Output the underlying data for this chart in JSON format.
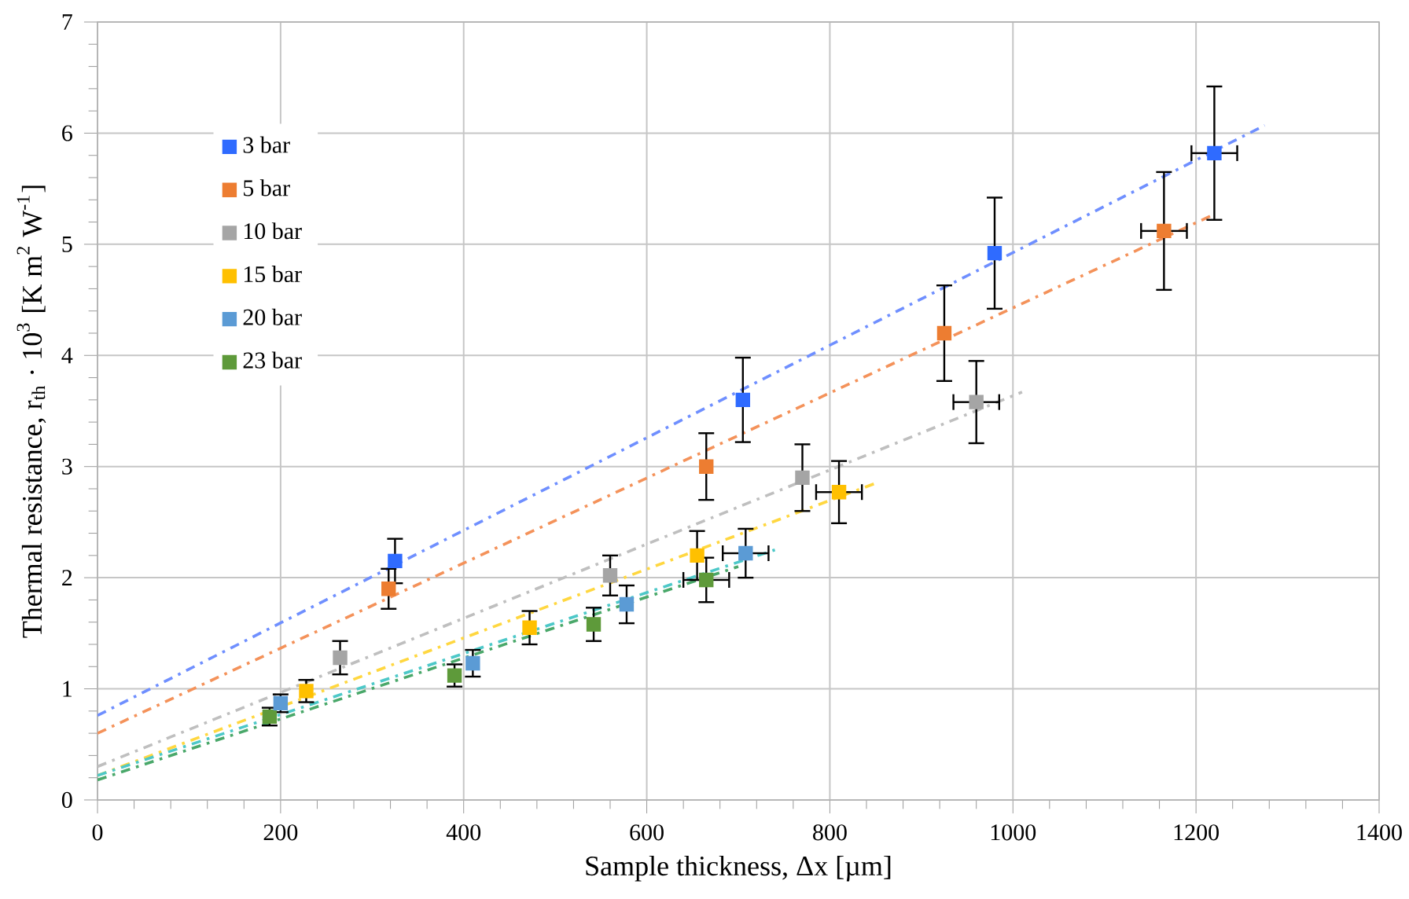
{
  "chart_data": {
    "type": "scatter",
    "xlabel": "Sample thickness, Δx [µm]",
    "ylabel": "Thermal resistance, r$_{th}$ · 10$^{3}$ [K m$^{2}$ W$^{-1}$]",
    "xlim": [
      0,
      1400
    ],
    "ylim": [
      0,
      7
    ],
    "xticks": [
      0,
      200,
      400,
      600,
      800,
      1000,
      1200,
      1400
    ],
    "yticks": [
      0,
      1,
      2,
      3,
      4,
      5,
      6,
      7
    ],
    "grid": true,
    "legend": "top left",
    "marker": "square",
    "series": [
      {
        "name": "3 bar",
        "color": "#2f6bff",
        "x": [
          325,
          705,
          980,
          1220
        ],
        "values": [
          2.15,
          3.6,
          4.92,
          5.82
        ],
        "errors": [
          0.2,
          0.38,
          0.5,
          0.6
        ],
        "xerrors": [
          null,
          null,
          null,
          25
        ]
      },
      {
        "name": "5 bar",
        "color": "#ed7d31",
        "x": [
          318,
          665,
          925,
          1165
        ],
        "values": [
          1.9,
          3.0,
          4.2,
          5.12
        ],
        "errors": [
          0.18,
          0.3,
          0.43,
          0.53
        ],
        "xerrors": [
          null,
          null,
          null,
          25
        ]
      },
      {
        "name": "10 bar",
        "color": "#a5a5a5",
        "x": [
          265,
          560,
          770,
          960
        ],
        "values": [
          1.28,
          2.02,
          2.9,
          3.58
        ],
        "errors": [
          0.15,
          0.18,
          0.3,
          0.37
        ],
        "xerrors": [
          null,
          null,
          null,
          25
        ]
      },
      {
        "name": "15 bar",
        "color": "#ffc000",
        "x": [
          228,
          472,
          655,
          810
        ],
        "values": [
          0.98,
          1.55,
          2.2,
          2.77
        ],
        "errors": [
          0.1,
          0.15,
          0.22,
          0.28
        ],
        "xerrors": [
          null,
          null,
          null,
          25
        ]
      },
      {
        "name": "20 bar",
        "color": "#5b9bd5",
        "x": [
          200,
          410,
          578,
          708
        ],
        "values": [
          0.87,
          1.23,
          1.76,
          2.22
        ],
        "errors": [
          0.08,
          0.12,
          0.17,
          0.22
        ],
        "xerrors": [
          null,
          null,
          null,
          25
        ]
      },
      {
        "name": "23 bar",
        "color": "#5e9a3a",
        "x": [
          188,
          390,
          542,
          665
        ],
        "values": [
          0.75,
          1.12,
          1.58,
          1.98
        ],
        "errors": [
          0.08,
          0.1,
          0.15,
          0.2
        ],
        "xerrors": [
          null,
          null,
          null,
          25
        ]
      },
      {
        "type": "line",
        "marker": "none",
        "line_style": "dashed",
        "color": "#6f8fff",
        "x": [
          0,
          1275
        ],
        "values": [
          0.76,
          6.07
        ]
      },
      {
        "type": "line",
        "marker": "none",
        "line_style": "dashed",
        "color": "#f4925a",
        "x": [
          0,
          1220
        ],
        "values": [
          0.6,
          5.27
        ]
      },
      {
        "type": "line",
        "marker": "none",
        "line_style": "dashed",
        "color": "#bfbfbf",
        "x": [
          0,
          1010
        ],
        "values": [
          0.3,
          3.67
        ]
      },
      {
        "type": "line",
        "marker": "none",
        "line_style": "dashed",
        "color": "#ffd740",
        "x": [
          0,
          850
        ],
        "values": [
          0.22,
          2.85
        ]
      },
      {
        "type": "line",
        "marker": "none",
        "line_style": "dashed",
        "color": "#4dc8c8",
        "x": [
          0,
          740
        ],
        "values": [
          0.22,
          2.25
        ]
      },
      {
        "type": "line",
        "marker": "none",
        "line_style": "dashed",
        "color": "#4aa86a",
        "x": [
          0,
          700
        ],
        "values": [
          0.18,
          2.1
        ]
      }
    ]
  }
}
